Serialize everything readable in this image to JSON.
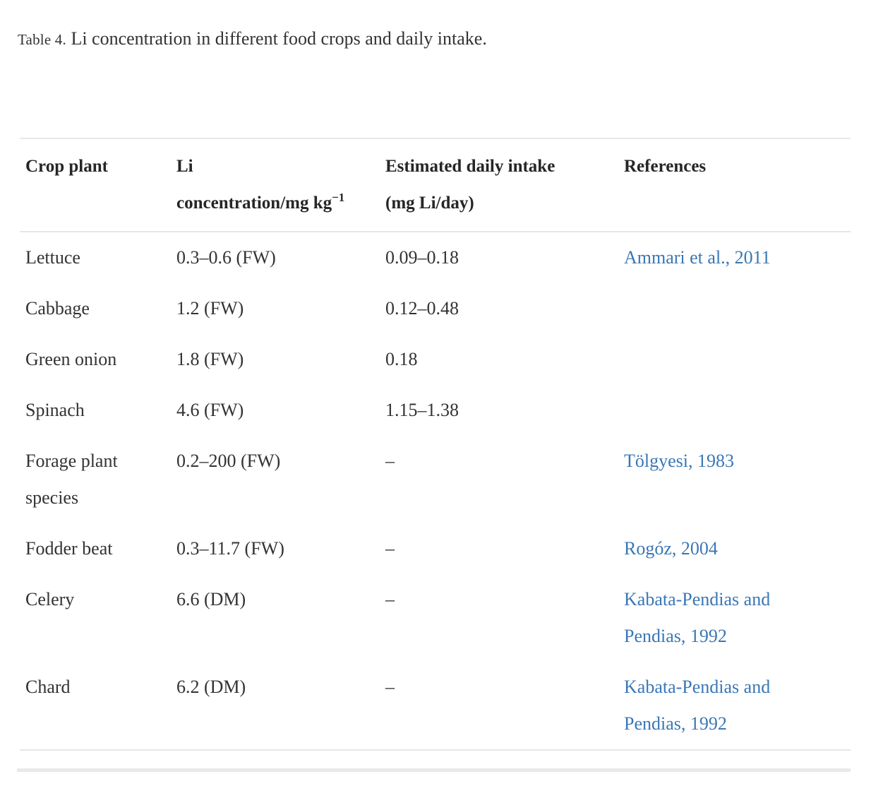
{
  "colors": {
    "text": "#333333",
    "heading": "#262626",
    "link": "#3a77b5",
    "border": "#e7e7e7",
    "divider": "#e9e9e9",
    "background": "#ffffff"
  },
  "caption": {
    "label": "Table 4.",
    "text": "Li concentration in different food crops and daily intake."
  },
  "table": {
    "headers": [
      {
        "lines": [
          "Crop plant"
        ]
      },
      {
        "lines": [
          "Li",
          "concentration/mg kg"
        ],
        "sup": "−1"
      },
      {
        "lines": [
          "Estimated daily intake",
          "(mg Li/day)"
        ]
      },
      {
        "lines": [
          "References"
        ]
      }
    ],
    "rows": [
      {
        "crop": "Lettuce",
        "concentration": "0.3–0.6 (FW)",
        "intake": "0.09–0.18",
        "reference": "Ammari et al., 2011"
      },
      {
        "crop": "Cabbage",
        "concentration": "1.2 (FW)",
        "intake": "0.12–0.48",
        "reference": ""
      },
      {
        "crop": "Green onion",
        "concentration": "1.8 (FW)",
        "intake": "0.18",
        "reference": ""
      },
      {
        "crop": "Spinach",
        "concentration": "4.6 (FW)",
        "intake": "1.15–1.38",
        "reference": ""
      },
      {
        "crop": "Forage plant species",
        "concentration": "0.2–200 (FW)",
        "intake": "–",
        "reference": "Tölgyesi, 1983"
      },
      {
        "crop": "Fodder beat",
        "concentration": "0.3–11.7 (FW)",
        "intake": "–",
        "reference": "Rogóz, 2004"
      },
      {
        "crop": "Celery",
        "concentration": "6.6 (DM)",
        "intake": "–",
        "reference": "Kabata-Pendias and Pendias, 1992"
      },
      {
        "crop": "Chard",
        "concentration": "6.2 (DM)",
        "intake": "–",
        "reference": "Kabata-Pendias and Pendias, 1992"
      }
    ]
  }
}
